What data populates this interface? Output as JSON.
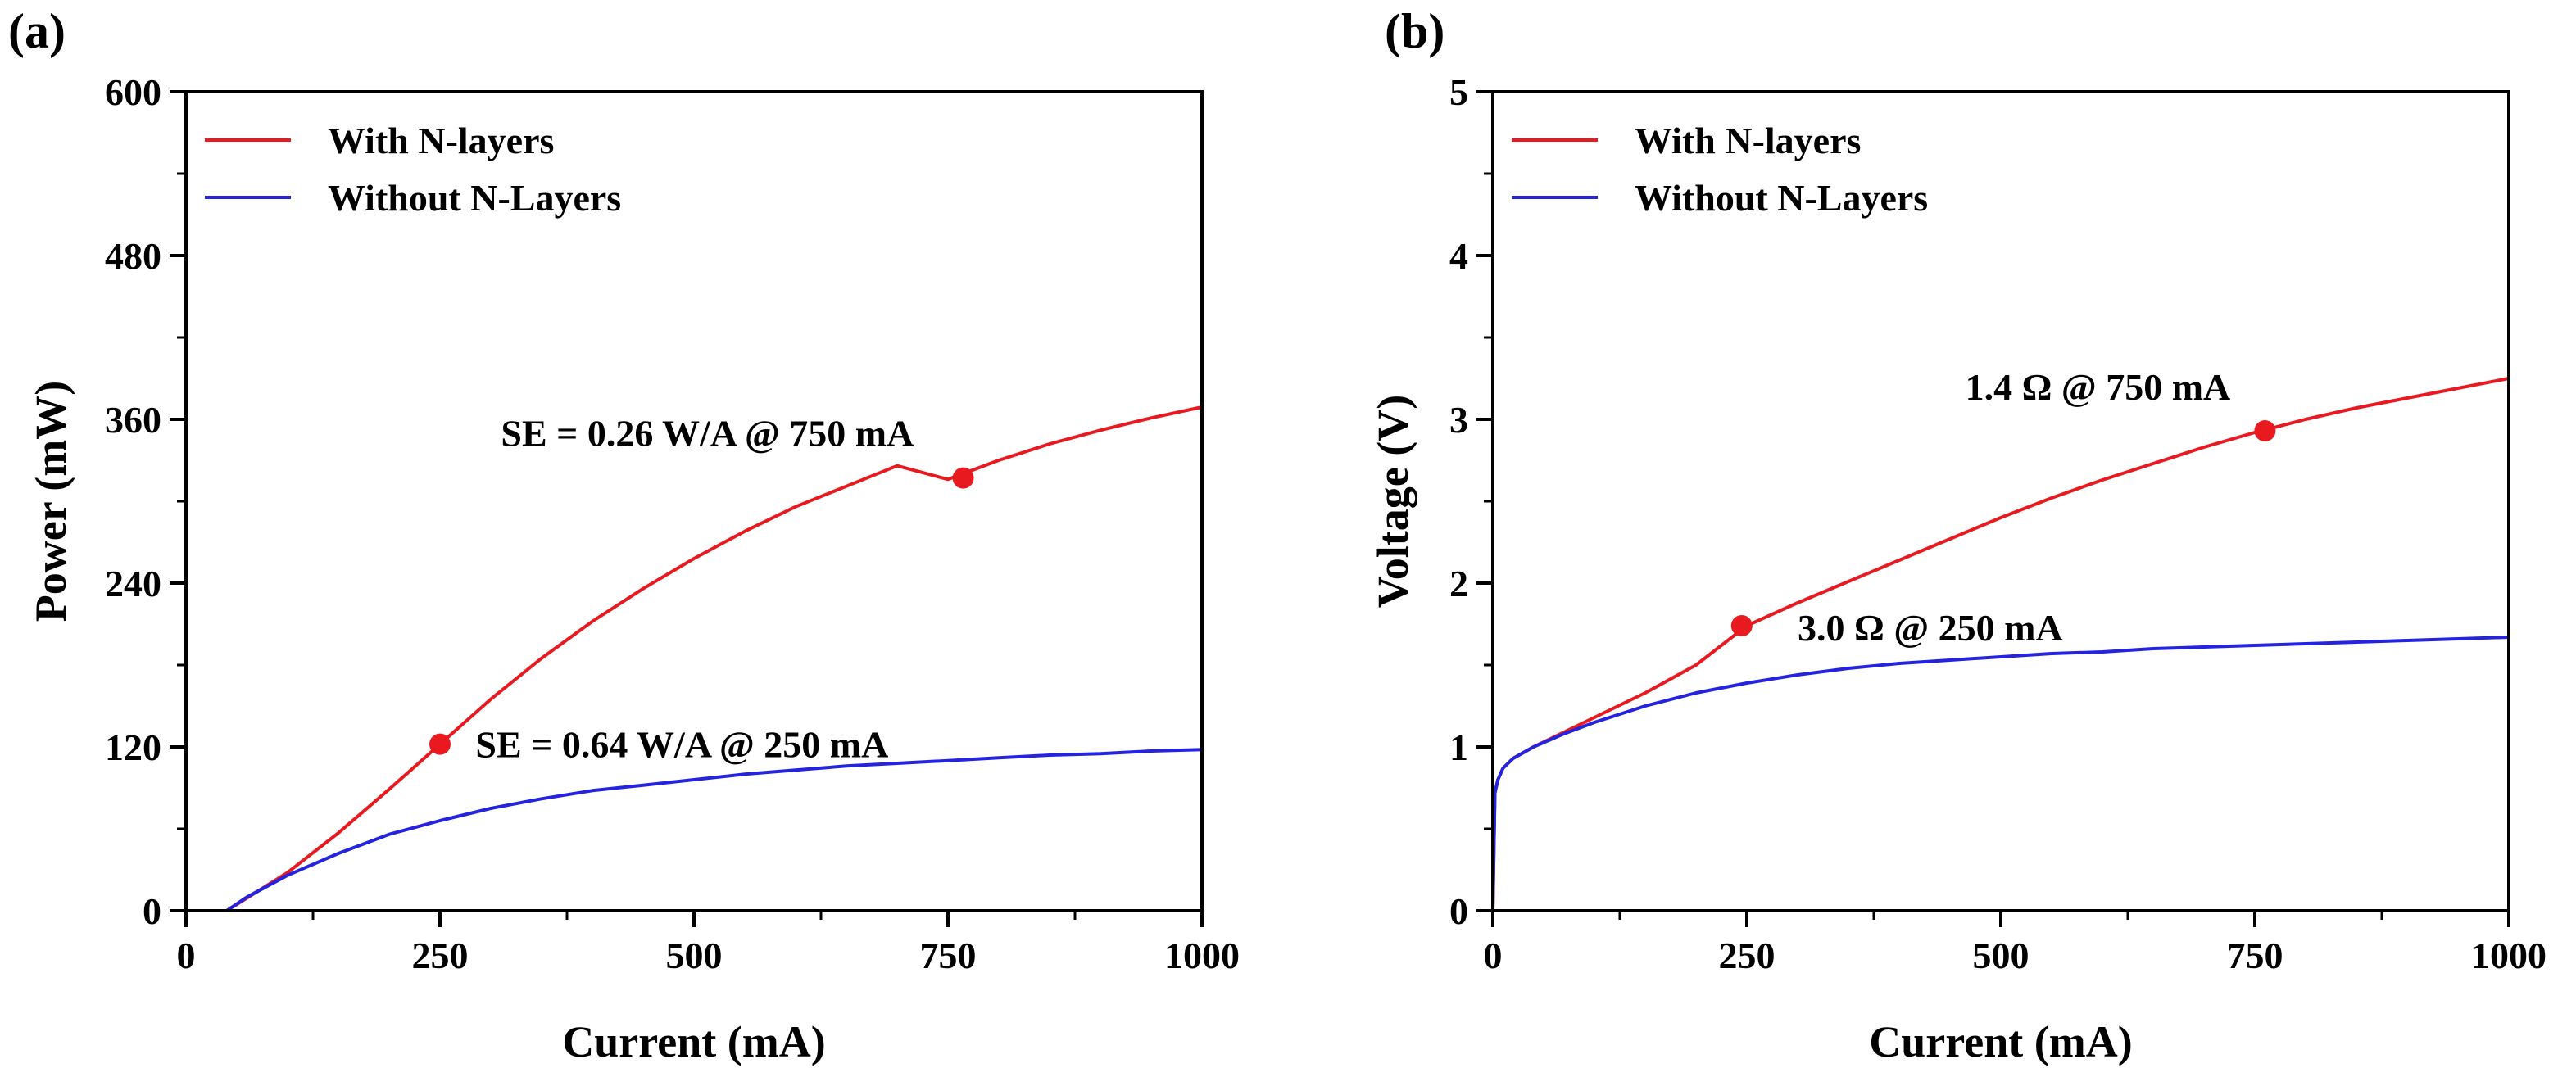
{
  "chart_data": [
    {
      "type": "line",
      "panel": "(a)",
      "title": "",
      "xlabel": "Current (mA)",
      "ylabel": "Power (mW)",
      "xlim": [
        0,
        1000
      ],
      "ylim": [
        0,
        600
      ],
      "xticks": [
        0,
        250,
        500,
        750,
        1000
      ],
      "yticks": [
        0,
        120,
        240,
        360,
        480,
        600
      ],
      "legend_position": "top-left",
      "series": [
        {
          "name": "With N-layers",
          "color": "#e8191f",
          "x": [
            0,
            40,
            100,
            150,
            200,
            250,
            300,
            350,
            400,
            450,
            500,
            550,
            600,
            650,
            700,
            750,
            800,
            850,
            900,
            950,
            1000
          ],
          "y": [
            0,
            0,
            28,
            57,
            89,
            122,
            155,
            185,
            212,
            236,
            258,
            278,
            296,
            311,
            326,
            316,
            330,
            342,
            352,
            361,
            369
          ]
        },
        {
          "name": "Without N-Layers",
          "color": "#2323e0",
          "x": [
            0,
            40,
            60,
            100,
            150,
            200,
            250,
            300,
            350,
            400,
            450,
            500,
            550,
            600,
            650,
            700,
            750,
            800,
            850,
            900,
            950,
            1000
          ],
          "y": [
            0,
            0,
            10,
            26,
            42,
            56,
            66,
            75,
            82,
            88,
            92,
            96,
            100,
            103,
            106,
            108,
            110,
            112,
            114,
            115,
            117,
            118
          ]
        }
      ],
      "markers": [
        {
          "series": "With N-layers",
          "x": 250,
          "y": 122
        },
        {
          "series": "With N-layers",
          "x": 765,
          "y": 317
        }
      ],
      "annotations": [
        {
          "text": "SE = 0.64 W/A @ 250 mA",
          "x": 285,
          "y": 122
        },
        {
          "text": "SE = 0.26 W/A @ 750 mA",
          "x": 310,
          "y": 350
        }
      ]
    },
    {
      "type": "line",
      "panel": "(b)",
      "title": "",
      "xlabel": "Current (mA)",
      "ylabel": "Voltage (V)",
      "xlim": [
        0,
        1000
      ],
      "ylim": [
        0,
        5
      ],
      "xticks": [
        0,
        250,
        500,
        750,
        1000
      ],
      "yticks": [
        0,
        1,
        2,
        3,
        4,
        5
      ],
      "legend_position": "top-left",
      "series": [
        {
          "name": "With N-layers",
          "color": "#e8191f",
          "x": [
            0,
            2,
            5,
            10,
            20,
            40,
            70,
            100,
            150,
            200,
            250,
            300,
            350,
            400,
            450,
            500,
            550,
            600,
            650,
            700,
            750,
            800,
            850,
            900,
            950,
            1000
          ],
          "y": [
            0,
            0.72,
            0.8,
            0.87,
            0.93,
            1.0,
            1.09,
            1.18,
            1.33,
            1.5,
            1.74,
            1.88,
            2.01,
            2.14,
            2.27,
            2.4,
            2.52,
            2.63,
            2.73,
            2.83,
            2.92,
            3.0,
            3.07,
            3.13,
            3.19,
            3.25
          ]
        },
        {
          "name": "Without N-Layers",
          "color": "#2323e0",
          "x": [
            0,
            2,
            5,
            10,
            20,
            40,
            70,
            100,
            150,
            200,
            250,
            300,
            350,
            400,
            450,
            500,
            550,
            600,
            650,
            700,
            750,
            800,
            850,
            900,
            950,
            1000
          ],
          "y": [
            0,
            0.72,
            0.8,
            0.87,
            0.93,
            1.0,
            1.08,
            1.15,
            1.25,
            1.33,
            1.39,
            1.44,
            1.48,
            1.51,
            1.53,
            1.55,
            1.57,
            1.58,
            1.6,
            1.61,
            1.62,
            1.63,
            1.64,
            1.65,
            1.66,
            1.67
          ]
        }
      ],
      "markers": [
        {
          "series": "With N-layers",
          "x": 245,
          "y": 1.74
        },
        {
          "series": "With N-layers",
          "x": 760,
          "y": 2.93
        }
      ],
      "annotations": [
        {
          "text": "3.0 Ω @ 250 mA",
          "x": 300,
          "y": 1.73
        },
        {
          "text": "1.4 Ω @ 750 mA",
          "x": 465,
          "y": 3.2
        }
      ]
    }
  ]
}
